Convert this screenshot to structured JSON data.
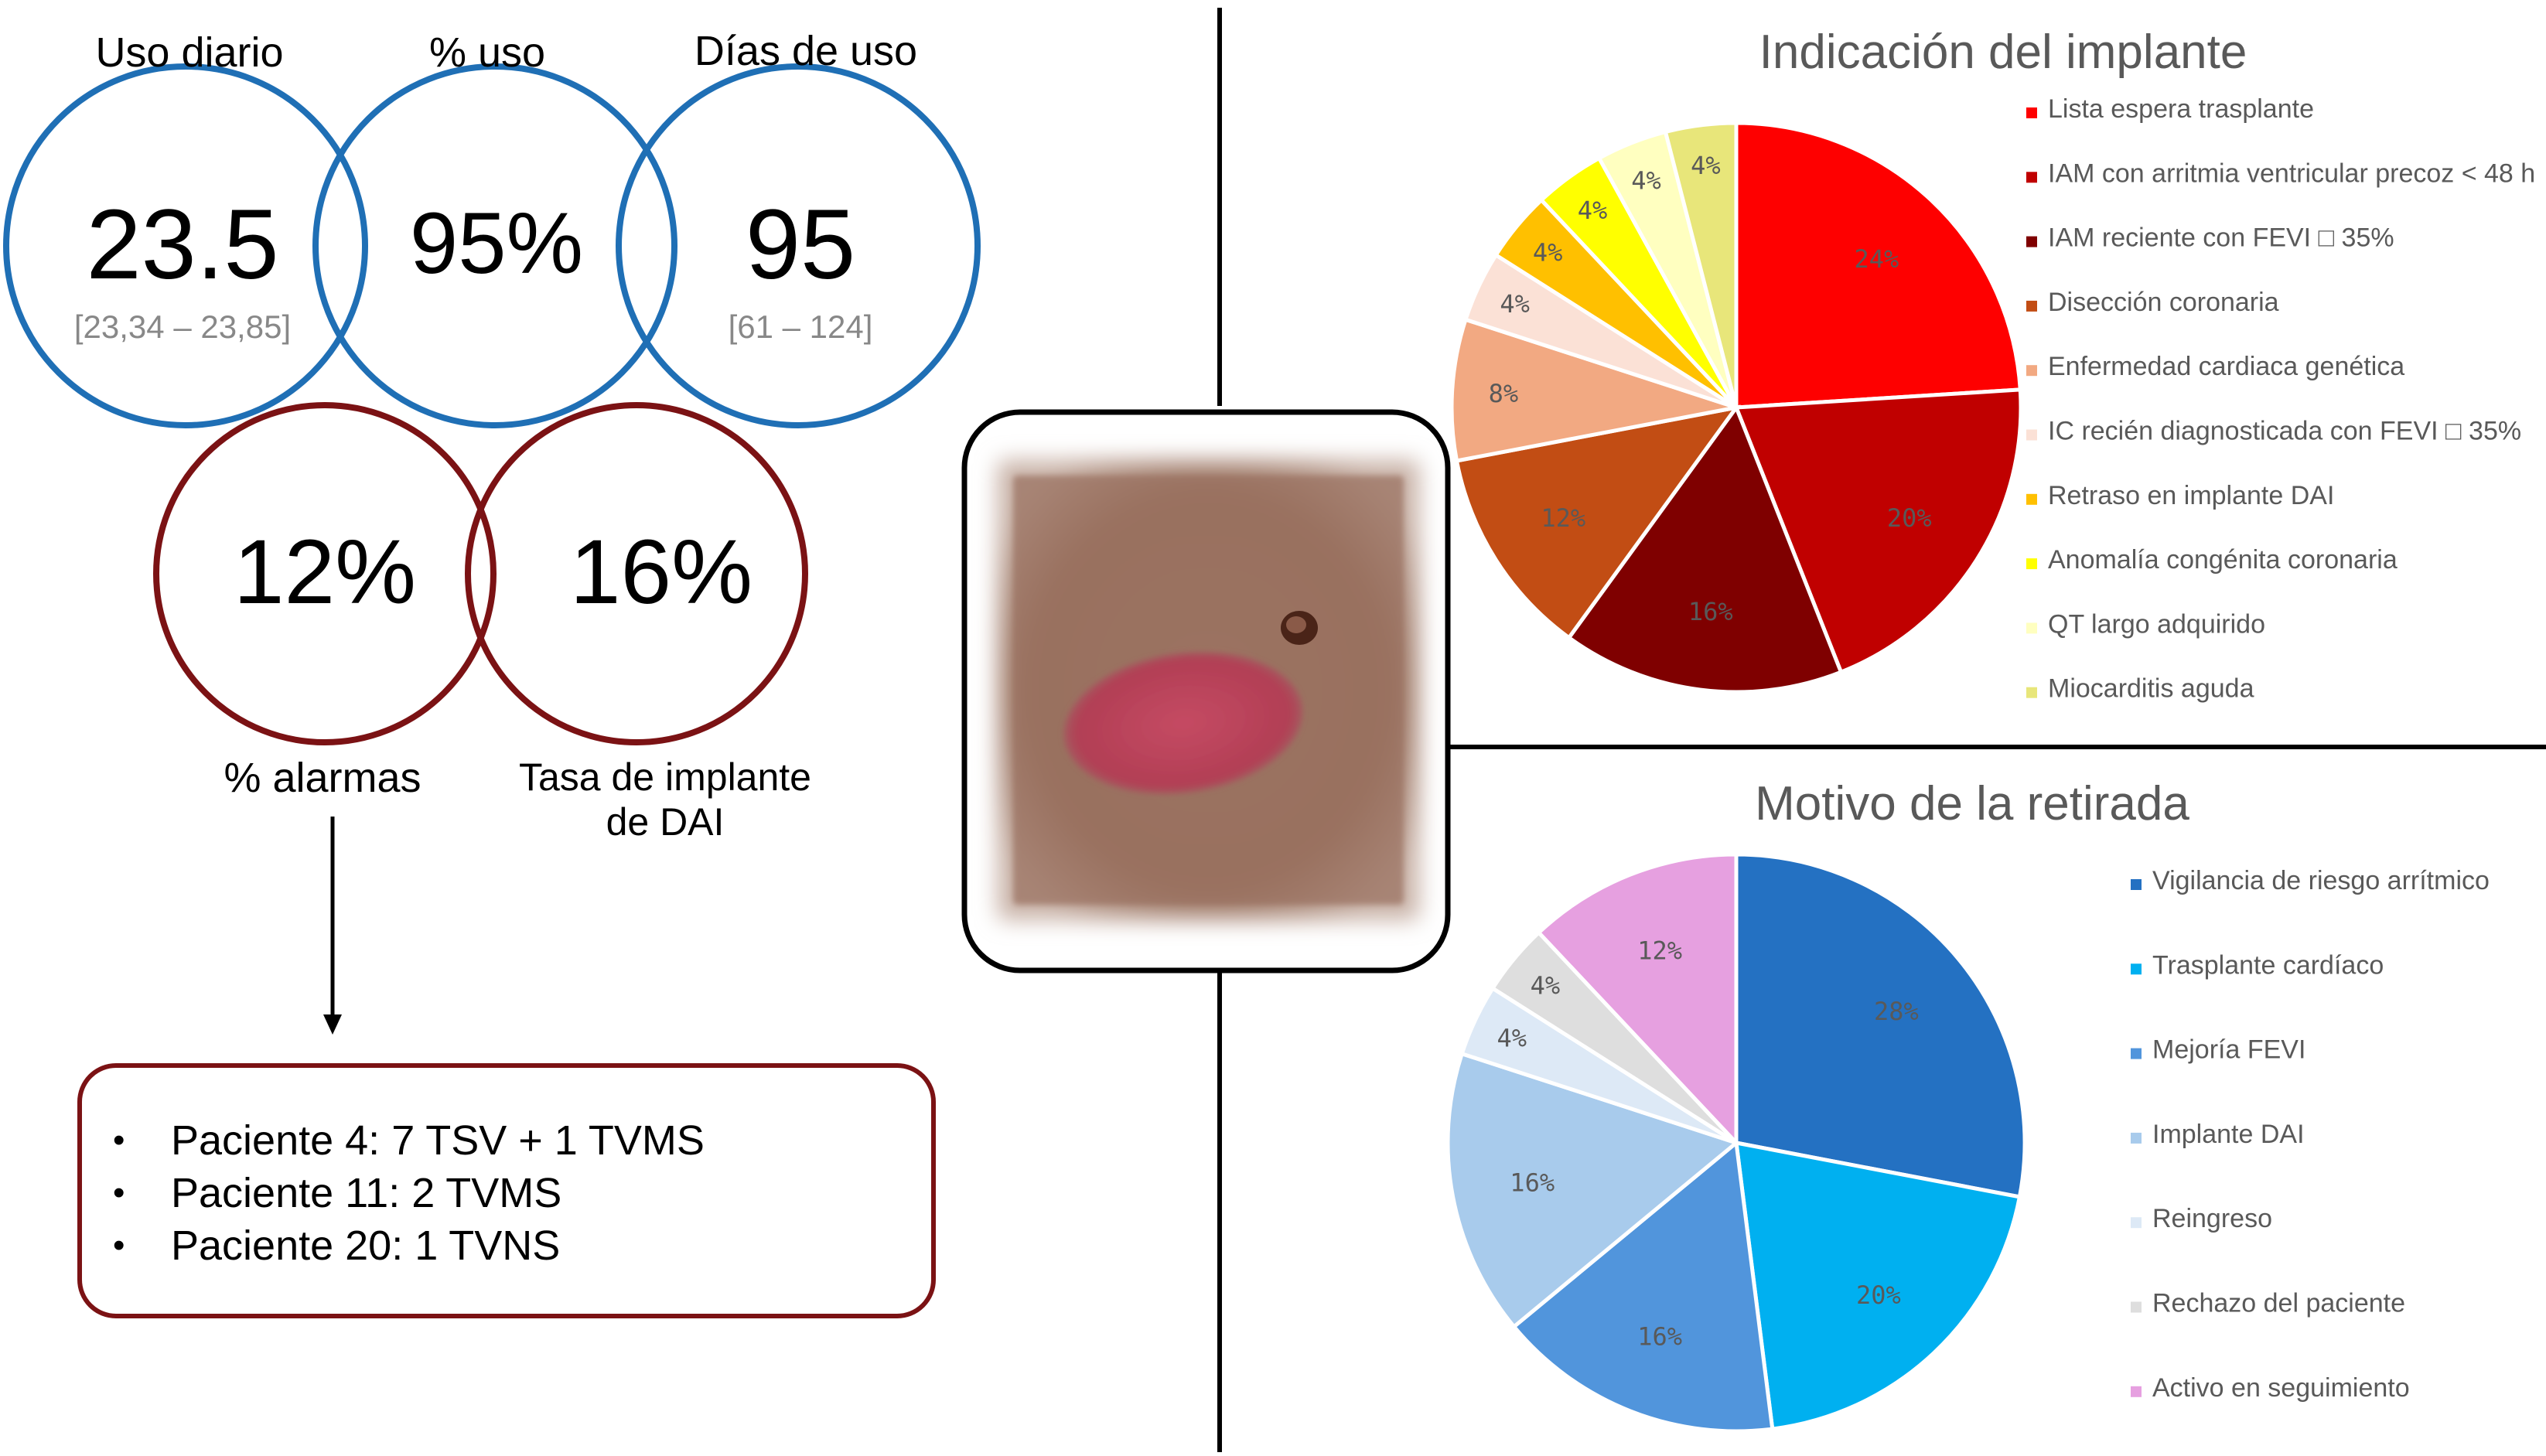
{
  "kpi": {
    "daily_use": {
      "label": "Uso diario",
      "value": "23.5",
      "range": "[23,34 – 23,85]"
    },
    "pct_use": {
      "label": "% uso",
      "value": "95%"
    },
    "days_use": {
      "label": "Días de uso",
      "value": "95",
      "range": "[61 – 124]"
    },
    "alarms": {
      "label": "% alarmas",
      "value": "12%"
    },
    "icd_rate": {
      "label_line1": "Tasa de implante",
      "label_line2": "de DAI",
      "value": "16%"
    }
  },
  "alarm_patients": [
    "Paciente 4: 7 TSV + 1 TVMS",
    "Paciente 11: 2 TVMS",
    "Paciente 20: 1 TVNS"
  ],
  "colors": {
    "blue_circle": "#1f6fb5",
    "maroon_circle": "#7b1214",
    "divider": "#000000"
  },
  "photo": {
    "icon": "skin-lesion-photo"
  },
  "chart_data": [
    {
      "type": "pie",
      "title": "Indicación del implante",
      "legend_position": "right",
      "slices": [
        {
          "label": "Lista espera trasplante",
          "value": 24,
          "display": "24%",
          "color": "#fe0000"
        },
        {
          "label": "IAM con arritmia ventricular precoz < 48 h",
          "value": 20,
          "display": "20%",
          "color": "#c00000"
        },
        {
          "label": "IAM reciente con FEVI □ 35%",
          "value": 16,
          "display": "16%",
          "color": "#7f0000"
        },
        {
          "label": "Disección coronaria",
          "value": 12,
          "display": "12%",
          "color": "#c24d14"
        },
        {
          "label": "Enfermedad cardiaca genética",
          "value": 8,
          "display": "8%",
          "color": "#f2a982"
        },
        {
          "label": "IC recién diagnosticada con FEVI □ 35%",
          "value": 4,
          "display": "4%",
          "color": "#fbe1d6"
        },
        {
          "label": "Retraso en implante DAI",
          "value": 4,
          "display": "4%",
          "color": "#ffc000"
        },
        {
          "label": "Anomalía congénita coronaria",
          "value": 4,
          "display": "4%",
          "color": "#ffff00"
        },
        {
          "label": "QT largo adquirido",
          "value": 4,
          "display": "4%",
          "color": "#ffffc0"
        },
        {
          "label": "Miocarditis aguda",
          "value": 4,
          "display": "4%",
          "color": "#e8e67a"
        }
      ]
    },
    {
      "type": "pie",
      "title": "Motivo de la retirada",
      "legend_position": "right",
      "slices": [
        {
          "label": "Vigilancia de riesgo arrítmico",
          "value": 28,
          "display": "28%",
          "color": "#2471c2"
        },
        {
          "label": "Trasplante cardíaco",
          "value": 20,
          "display": "20%",
          "color": "#00b0f0"
        },
        {
          "label": "Mejoría FEVI",
          "value": 16,
          "display": "16%",
          "color": "#5195dc"
        },
        {
          "label": "Implante DAI",
          "value": 16,
          "display": "16%",
          "color": "#a8cbec"
        },
        {
          "label": "Reingreso",
          "value": 4,
          "display": "4%",
          "color": "#dde9f6"
        },
        {
          "label": "Rechazo del paciente",
          "value": 4,
          "display": "4%",
          "color": "#dedede"
        },
        {
          "label": "Activo en seguimiento",
          "value": 12,
          "display": "12%",
          "color": "#e6a0e0"
        }
      ]
    }
  ]
}
